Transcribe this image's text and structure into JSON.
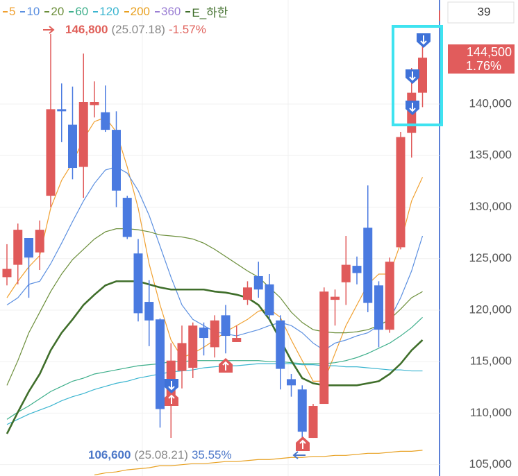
{
  "chart_data": {
    "type": "candlestick",
    "counter": "39",
    "ylim": [
      103900,
      150100
    ],
    "yticks": [
      {
        "value": 105000,
        "label": "105,000"
      },
      {
        "value": 110000,
        "label": "110,000"
      },
      {
        "value": 115000,
        "label": "115,000"
      },
      {
        "value": 120000,
        "label": "120,000"
      },
      {
        "value": 125000,
        "label": "125,000"
      },
      {
        "value": 130000,
        "label": "130,000"
      },
      {
        "value": 135000,
        "label": "135,000"
      },
      {
        "value": 140000,
        "label": "140,000"
      }
    ],
    "grid": true,
    "up_color": "#e05a5a",
    "down_color": "#4a7ae0",
    "candles": {
      "open": [
        123200,
        124400,
        127000,
        125600,
        131100,
        139500,
        138000,
        133900,
        139900,
        139200,
        137500,
        130900,
        125500,
        120800,
        119100,
        111100,
        114100,
        114400,
        118300,
        116400,
        119500,
        116900,
        121000,
        123300,
        122500,
        119000,
        113300,
        112300,
        107600,
        110900,
        121000,
        122700,
        124300,
        128000,
        122400,
        118100,
        126100,
        137200,
        141100
      ],
      "high": [
        126400,
        128400,
        127000,
        128700,
        146800,
        142000,
        141700,
        144900,
        142200,
        141800,
        139300,
        131100,
        126900,
        122900,
        119200,
        116800,
        118500,
        118800,
        118800,
        119500,
        120500,
        118500,
        122800,
        124700,
        123500,
        119500,
        113800,
        112700,
        110900,
        122200,
        122000,
        127200,
        125200,
        132100,
        122800,
        125100,
        137300,
        143500,
        145600
      ],
      "low": [
        122400,
        122500,
        121200,
        123900,
        130000,
        136300,
        132700,
        130900,
        138700,
        137300,
        130000,
        126900,
        118900,
        116500,
        108600,
        107600,
        112400,
        113400,
        115600,
        115400,
        115800,
        116900,
        120500,
        121200,
        119100,
        112300,
        111600,
        106600,
        107600,
        110900,
        118500,
        120500,
        122500,
        119800,
        116400,
        117800,
        125900,
        134800,
        139700
      ],
      "close": [
        124000,
        127800,
        125100,
        127800,
        139500,
        139300,
        133800,
        140200,
        140200,
        137500,
        131600,
        127100,
        119700,
        119000,
        110400,
        115100,
        116800,
        118500,
        117300,
        119000,
        117500,
        117300,
        122200,
        122000,
        119500,
        114300,
        112700,
        108200,
        110700,
        121800,
        121300,
        124400,
        123600,
        120700,
        118100,
        124700,
        136800,
        141100,
        144500
      ]
    },
    "series": [
      {
        "name": "5",
        "color": "#f0a030",
        "line_width": 1.2,
        "values": [
          121200,
          122800,
          124200,
          125300,
          129900,
          132600,
          134300,
          136600,
          138300,
          138700,
          137300,
          133900,
          129900,
          124500,
          120500,
          117100,
          115400,
          115800,
          116400,
          117100,
          117900,
          118500,
          119100,
          119900,
          120100,
          119300,
          117100,
          115100,
          113100,
          113100,
          115800,
          118500,
          120500,
          122500,
          123500,
          123500,
          126500,
          130600,
          132900
        ]
      },
      {
        "name": "10",
        "color": "#5b8fe0",
        "line_width": 1.2,
        "values": [
          120500,
          121200,
          122500,
          122800,
          124500,
          126500,
          128600,
          130600,
          132300,
          133600,
          133900,
          133300,
          131600,
          129200,
          126200,
          123200,
          120500,
          119100,
          118500,
          117900,
          117700,
          117500,
          117800,
          118100,
          118500,
          118800,
          118500,
          117800,
          116800,
          116100,
          116800,
          117100,
          117500,
          117800,
          118500,
          119100,
          121200,
          123800,
          127200
        ]
      },
      {
        "name": "20",
        "color": "#6b8e3a",
        "line_width": 1.2,
        "values": [
          112700,
          115100,
          117800,
          119800,
          121800,
          123500,
          124900,
          125900,
          126900,
          127600,
          127900,
          127900,
          127800,
          127600,
          127300,
          127200,
          127100,
          126900,
          126500,
          125900,
          125200,
          124500,
          123800,
          123200,
          122200,
          121200,
          119800,
          118800,
          118100,
          117900,
          117800,
          117800,
          117900,
          118100,
          118500,
          119100,
          120100,
          121200,
          121800
        ]
      },
      {
        "name": "60",
        "color": "#3cae8a",
        "line_width": 1.2,
        "values": [
          109400,
          110100,
          110700,
          111400,
          112100,
          112600,
          113100,
          113400,
          113800,
          114000,
          114200,
          114400,
          114600,
          114700,
          114800,
          115000,
          115000,
          115100,
          115100,
          115100,
          115100,
          115100,
          115100,
          115100,
          115000,
          115000,
          114900,
          114800,
          114800,
          114800,
          114900,
          115100,
          115400,
          115800,
          116300,
          116800,
          117500,
          118300,
          119300
        ]
      },
      {
        "name": "120",
        "color": "#3bb5d0",
        "line_width": 1.2,
        "values": [
          108900,
          109400,
          109900,
          110300,
          110700,
          111200,
          111600,
          111900,
          112300,
          112600,
          112900,
          113100,
          113400,
          113600,
          113800,
          114000,
          114100,
          114200,
          114400,
          114500,
          114600,
          114600,
          114700,
          114800,
          114800,
          114800,
          114800,
          114700,
          114700,
          114600,
          114600,
          114500,
          114500,
          114400,
          114300,
          114200,
          114200,
          114100,
          114100
        ]
      },
      {
        "name": "200",
        "color": "#e8a020",
        "line_width": 1.2,
        "values": [
          null,
          null,
          null,
          null,
          null,
          null,
          null,
          null,
          104000,
          104200,
          104300,
          104500,
          104600,
          104700,
          104900,
          104900,
          105000,
          105100,
          105100,
          105200,
          105300,
          105300,
          105400,
          105500,
          105500,
          105600,
          105700,
          105700,
          105800,
          105800,
          105900,
          105900,
          106000,
          106100,
          106100,
          106200,
          106300,
          106300,
          106400
        ]
      },
      {
        "name": "360",
        "color": "#9b7fd4",
        "line_width": 1.2,
        "values": [
          null,
          null,
          null,
          null,
          null,
          null,
          null,
          null,
          null,
          null,
          null,
          null,
          null,
          null,
          null,
          null,
          null,
          null,
          null,
          null,
          null,
          null,
          null,
          null,
          null,
          null,
          null,
          null,
          null,
          null,
          null,
          null,
          null,
          null,
          null,
          null,
          null,
          null,
          null
        ]
      },
      {
        "name": "E_하한",
        "color": "#3f6e2a",
        "line_width": 2.6,
        "values": [
          108000,
          110100,
          112100,
          113800,
          116100,
          117800,
          119100,
          120500,
          121500,
          122400,
          122800,
          122800,
          122800,
          122500,
          122200,
          122000,
          122000,
          122000,
          122000,
          121800,
          121700,
          121500,
          121200,
          120500,
          119100,
          117100,
          115100,
          113400,
          112900,
          112700,
          112700,
          112700,
          112700,
          112900,
          113100,
          113800,
          114800,
          116100,
          117100
        ]
      }
    ],
    "max_annotation": {
      "price": "146,800",
      "date": "(25.07.18)",
      "change": "-1.57%",
      "color": "#e0605a"
    },
    "min_annotation": {
      "price": "106,600",
      "date": "(25.08.21)",
      "change": "35.55%",
      "color": "#4a76c8"
    },
    "current_price": {
      "price": "144,500",
      "change": "1.76%",
      "color": "#e15c5c"
    }
  }
}
